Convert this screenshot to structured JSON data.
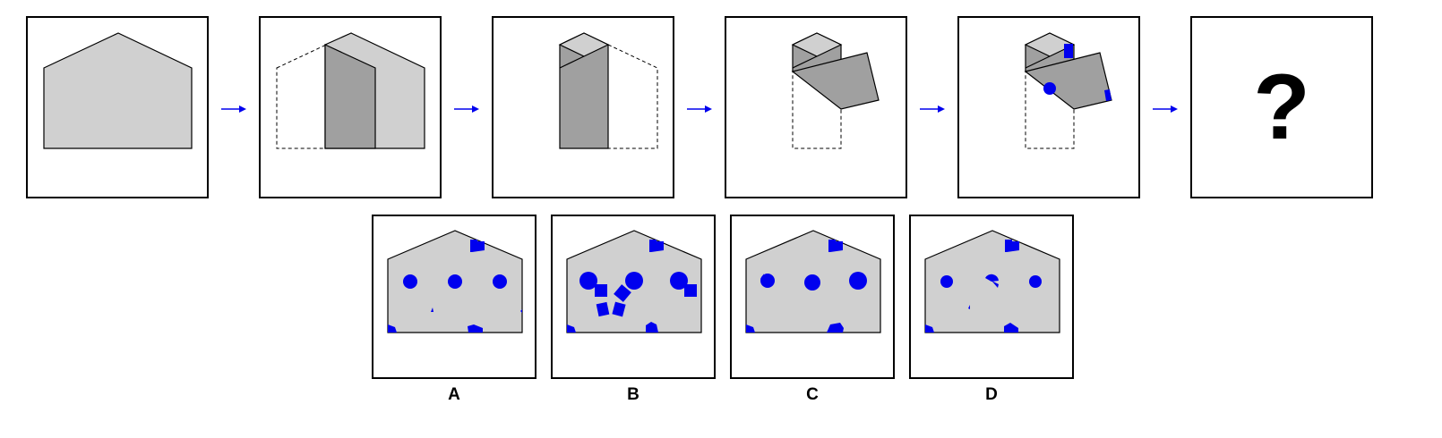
{
  "colors": {
    "paper": "#d0d0d0",
    "fold": "#a0a0a0",
    "hole": "#0000ee",
    "arrow": "#0000ee",
    "outline": "#000000"
  },
  "question": {
    "unknown_symbol": "?"
  },
  "options": [
    {
      "label": "A"
    },
    {
      "label": "B"
    },
    {
      "label": "C"
    },
    {
      "label": "D"
    }
  ]
}
